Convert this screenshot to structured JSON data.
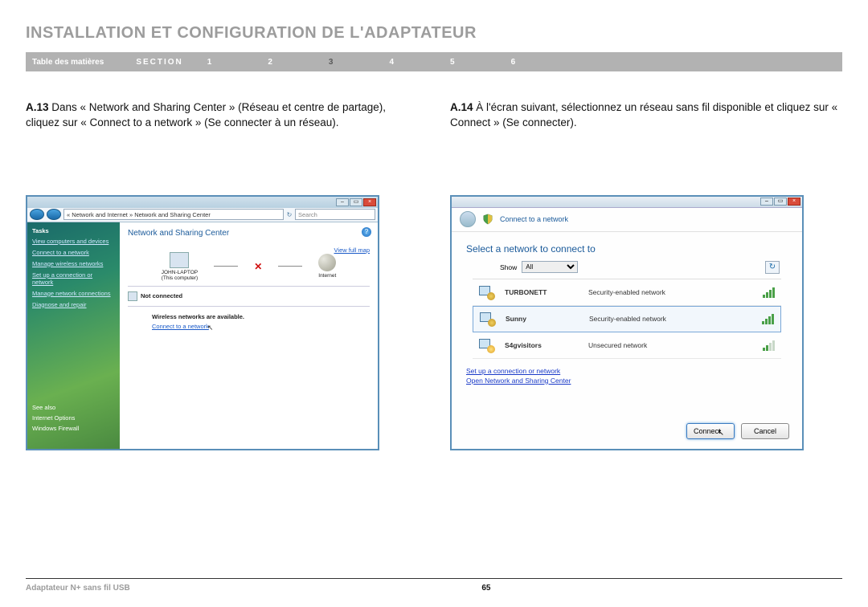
{
  "page": {
    "title": "INSTALLATION ET CONFIGURATION DE L'ADAPTATEUR",
    "number": "65",
    "product": "Adaptateur N+ sans fil USB"
  },
  "nav": {
    "toc": "Table des matières",
    "section": "SECTION",
    "items": [
      "1",
      "2",
      "3",
      "4",
      "5",
      "6"
    ],
    "active": "3"
  },
  "steps": {
    "a13": {
      "label": "A.13",
      "text": " Dans « Network and Sharing Center » (Réseau et centre de partage), cliquez sur « Connect to a network » (Se connecter à un réseau)."
    },
    "a14": {
      "label": "A.14",
      "text": " À l'écran suivant, sélectionnez un réseau sans fil disponible et cliquez sur « Connect » (Se connecter)."
    }
  },
  "shot1": {
    "breadcrumb": "« Network and Internet » Network and Sharing Center",
    "search_placeholder": "Search",
    "sidebar": {
      "tasks": "Tasks",
      "links": [
        "View computers and devices",
        "Connect to a network",
        "Manage wireless networks",
        "Set up a connection or network",
        "Manage network connections",
        "Diagnose and repair"
      ],
      "footer": [
        "See also",
        "Internet Options",
        "Windows Firewall"
      ]
    },
    "heading": "Network and Sharing Center",
    "fullmap": "View full map",
    "node_pc": "JOHN-LAPTOP",
    "node_pc_sub": "(This computer)",
    "node_net": "Internet",
    "not_connected": "Not connected",
    "wireless_avail": "Wireless networks are available.",
    "connect_link": "Connect to a network"
  },
  "shot2": {
    "header": "Connect to a network",
    "subtitle": "Select a network to connect to",
    "show_label": "Show",
    "show_value": "All",
    "refresh": "↻",
    "networks": [
      {
        "name": "TURBONETT",
        "sec": "Security-enabled network",
        "strength": "full",
        "locked": true
      },
      {
        "name": "Sunny",
        "sec": "Security-enabled network",
        "strength": "full",
        "locked": true,
        "selected": true
      },
      {
        "name": "S4gvisitors",
        "sec": "Unsecured network",
        "strength": "weak",
        "locked": false
      }
    ],
    "links": [
      "Set up a connection or network",
      "Open Network and Sharing Center"
    ],
    "btn_connect": "Connect",
    "btn_cancel": "Cancel"
  },
  "colors": {
    "title": "#9c9c9c",
    "navbar": "#b2b2b2",
    "link": "#1a5ac8",
    "border": "#5a8fb8"
  }
}
